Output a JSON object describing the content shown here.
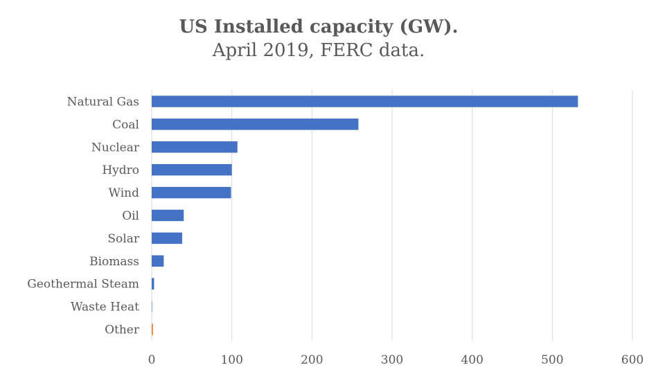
{
  "chart_data": {
    "type": "bar",
    "orientation": "horizontal",
    "title": "US Installed capacity (GW).",
    "subtitle": "April 2019, FERC data.",
    "categories": [
      "Natural Gas",
      "Coal",
      "Nuclear",
      "Hydro",
      "Wind",
      "Oil",
      "Solar",
      "Biomass",
      "Geothermal Steam",
      "Waste Heat",
      "Other"
    ],
    "values": [
      532,
      258,
      107,
      100,
      99,
      40,
      38,
      15,
      3,
      0.5,
      1.5
    ],
    "bar_colors": [
      "#4472C4",
      "#4472C4",
      "#4472C4",
      "#4472C4",
      "#4472C4",
      "#4472C4",
      "#4472C4",
      "#4472C4",
      "#4472C4",
      "#4472C4",
      "#ED7D31"
    ],
    "xlim": [
      0,
      600
    ],
    "xticks": [
      0,
      100,
      200,
      300,
      400,
      500,
      600
    ],
    "grid": "vertical",
    "legend": "none"
  }
}
